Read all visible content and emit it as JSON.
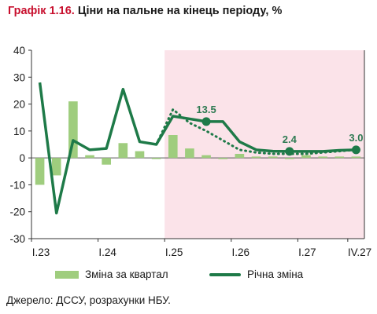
{
  "title": {
    "number": "Графік 1.16.",
    "text": "Ціни на пальне на кінець періоду, %"
  },
  "legend": {
    "bars": "Зміна за квартал",
    "line": "Річна зміна"
  },
  "source": "Джерело: ДССУ, розрахунки НБУ.",
  "colors": {
    "bars": "#9fcd7e",
    "line": "#1e7a48",
    "forecast_band": "#fbe3e9",
    "labels": "#2e7a52"
  },
  "chart_data": {
    "type": "bar+line",
    "ylim": [
      -30,
      40
    ],
    "yticks": [
      40,
      30,
      20,
      10,
      0,
      -10,
      -20,
      -30
    ],
    "xticks": [
      "I.23",
      "I.24",
      "I.25",
      "I.26",
      "I.27",
      "IV.27"
    ],
    "categories": [
      "I.23",
      "II.23",
      "III.23",
      "IV.23",
      "I.24",
      "II.24",
      "III.24",
      "IV.24",
      "I.25",
      "II.25",
      "III.25",
      "IV.25",
      "I.26",
      "II.26",
      "III.26",
      "IV.26",
      "I.27",
      "II.27",
      "III.27",
      "IV.27"
    ],
    "forecast_start": "I.25",
    "series": [
      {
        "name": "Зміна за квартал",
        "type": "bar",
        "values": [
          -10,
          -6.5,
          21,
          1,
          -2.5,
          5.5,
          2.5,
          0,
          8.5,
          3.5,
          1,
          0,
          1.5,
          0.5,
          0.5,
          0,
          1,
          0.5,
          0.5,
          0.5
        ]
      },
      {
        "name": "Річна зміна",
        "type": "line",
        "values": [
          28,
          -20.5,
          6.5,
          3,
          3.5,
          25.5,
          6,
          5,
          15.5,
          14.5,
          13.5,
          13.5,
          6,
          3,
          2.5,
          2.4,
          2.4,
          2.4,
          2.8,
          3.0
        ]
      },
      {
        "type": "line-dotted",
        "values": [
          null,
          null,
          null,
          null,
          null,
          null,
          null,
          5,
          18,
          13,
          10,
          6.5,
          3,
          2,
          1.5,
          1.5,
          1.5,
          2,
          2.5,
          3
        ]
      }
    ],
    "annotations": [
      {
        "category": "III.25",
        "value": 13.5,
        "label": "13.5"
      },
      {
        "category": "IV.26",
        "value": 2.4,
        "label": "2.4"
      },
      {
        "category": "IV.27",
        "value": 3.0,
        "label": "3.0"
      }
    ]
  }
}
